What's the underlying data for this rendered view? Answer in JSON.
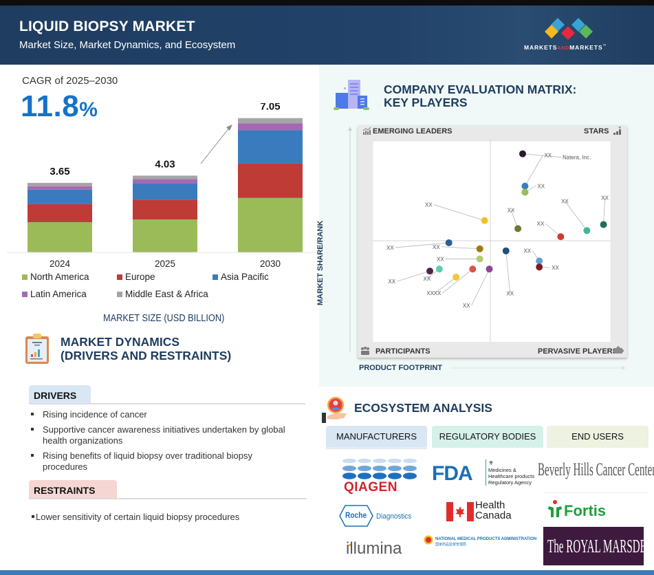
{
  "header": {
    "title": "LIQUID BIOPSY MARKET",
    "subtitle": "Market Size, Market Dynamics, and Ecosystem",
    "brand": {
      "part1": "MARKETS",
      "part2": "AND",
      "part3": "MARKETS",
      "tm": "™"
    },
    "colors": {
      "background": "#1f3d60",
      "logo_blue": "#3aa3d6",
      "logo_yellow": "#f4b922",
      "logo_red": "#e8283f",
      "logo_green": "#5cb85c"
    }
  },
  "market_size": {
    "cagr_label": "CAGR of 2025–2030",
    "cagr_number": "11.8",
    "cagr_pct": "%",
    "footer_label": "MARKET SIZE (USD BILLION)"
  },
  "chart_data": {
    "type": "bar",
    "stacked": true,
    "title": "",
    "xlabel": "MARKET SIZE (USD BILLION)",
    "ylabel": "",
    "categories": [
      "2024",
      "2025",
      "2030"
    ],
    "totals": [
      "3.65",
      "4.03",
      "7.05"
    ],
    "total_values": [
      3.65,
      4.03,
      7.05
    ],
    "series": [
      {
        "name": "North America",
        "color": "#9bbb59",
        "values": [
          1.59,
          1.73,
          2.86
        ]
      },
      {
        "name": "Europe",
        "color": "#be3b36",
        "values": [
          0.94,
          1.04,
          1.81
        ]
      },
      {
        "name": "Asia Pacific",
        "color": "#3a7bbd",
        "values": [
          0.76,
          0.87,
          1.74
        ]
      },
      {
        "name": "Latin America",
        "color": "#a569b3",
        "values": [
          0.18,
          0.21,
          0.36
        ]
      },
      {
        "name": "Middle East & Africa",
        "color": "#a5a5a5",
        "values": [
          0.18,
          0.18,
          0.28
        ]
      }
    ],
    "ylim": [
      0,
      7.05
    ],
    "grid": false,
    "legend": "bottom",
    "annotation": "arrow from 2025 to 2030"
  },
  "dynamics": {
    "title_line1": "MARKET DYNAMICS",
    "title_line2": "(DRIVERS AND RESTRAINTS)",
    "drivers_label": "DRIVERS",
    "drivers": [
      {
        "line1": "Rising incidence of cancer",
        "line2": ""
      },
      {
        "line1": "Supportive cancer awareness initiatives undertaken by global",
        "line2": "health organizations"
      },
      {
        "line1": "Rising benefits of liquid biopsy over traditional biopsy",
        "line2": "procedures"
      }
    ],
    "restraints_label": "RESTRAINTS",
    "restraints": [
      "Lower sensitivity of certain liquid biopsy procedures"
    ]
  },
  "matrix": {
    "title_line1": "COMPANY EVALUATION MATRIX:",
    "title_line2": "KEY PLAYERS",
    "quadrants": {
      "top_left": "EMERGING LEADERS",
      "top_right": "STARS",
      "bottom_left": "PARTICIPANTS",
      "bottom_right": "PERVASIVE PLAYERS"
    },
    "y_axis": "MARKET SHARE/RANK",
    "x_axis": "PRODUCT FOOTPRINT",
    "players": [
      {
        "label": "Natera, Inc.",
        "color": "#2b1a2e",
        "footprint": 0.63,
        "share": 0.93
      },
      {
        "label": "XX",
        "color": "#3a7ebf",
        "footprint": 0.64,
        "share": 0.77
      },
      {
        "label": "XX",
        "color": "#9bbb59",
        "footprint": 0.64,
        "share": 0.74
      },
      {
        "label": "XX",
        "color": "#1f6e5a",
        "footprint": 0.97,
        "share": 0.58
      },
      {
        "label": "XX",
        "color": "#3fb89a",
        "footprint": 0.9,
        "share": 0.55
      },
      {
        "label": "XX",
        "color": "#d03a33",
        "footprint": 0.79,
        "share": 0.52
      },
      {
        "label": "XX",
        "color": "#6b7a2e",
        "footprint": 0.61,
        "share": 0.56
      },
      {
        "label": "XX",
        "color": "#f5c024",
        "footprint": 0.47,
        "share": 0.6
      },
      {
        "label": "XX",
        "color": "#2b5f97",
        "footprint": 0.32,
        "share": 0.49
      },
      {
        "label": "XX",
        "color": "#a07a12",
        "footprint": 0.45,
        "share": 0.46
      },
      {
        "label": "XX",
        "color": "#b5cc6b",
        "footprint": 0.45,
        "share": 0.41
      },
      {
        "label": "XX",
        "color": "#234d7c",
        "footprint": 0.56,
        "share": 0.45
      },
      {
        "label": "XX",
        "color": "#5fa0dc",
        "footprint": 0.7,
        "share": 0.4
      },
      {
        "label": "XX",
        "color": "#7a1e1e",
        "footprint": 0.7,
        "share": 0.37
      },
      {
        "label": "XX",
        "color": "#4a2748",
        "footprint": 0.24,
        "share": 0.35
      },
      {
        "label": "XX",
        "color": "#5ccdb2",
        "footprint": 0.28,
        "share": 0.36
      },
      {
        "label": "XX",
        "color": "#f5c733",
        "footprint": 0.35,
        "share": 0.32
      },
      {
        "label": "XX",
        "color": "#df5248",
        "footprint": 0.42,
        "share": 0.36
      },
      {
        "label": "XX",
        "color": "#8b4795",
        "footprint": 0.49,
        "share": 0.36
      }
    ]
  },
  "ecosystem": {
    "title": "ECOSYSTEM ANALYSIS",
    "tabs": [
      "MANUFACTURERS",
      "REGULATORY BODIES",
      "END USERS"
    ],
    "manufacturers": [
      "QIAGEN",
      "Roche",
      "Diagnostics",
      "illumina"
    ],
    "regulatory": {
      "fda": "FDA",
      "mhra_line1": "Medicines &",
      "mhra_line2": "Healthcare products",
      "mhra_line3": "Regulatory Agency",
      "hc_line1": "Health",
      "hc_line2": "Canada",
      "nmpa": "NATIONAL MEDICAL PRODUCTS ADMINISTRATION",
      "nmpa_cn": "国家药品监督管理局"
    },
    "end_users": [
      "Beverly Hills Cancer Center",
      "Fortis",
      "The ROYAL MARSDEN"
    ]
  }
}
